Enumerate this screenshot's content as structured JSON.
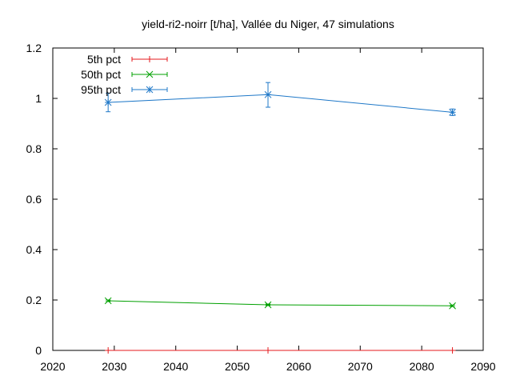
{
  "chart_data": {
    "type": "line",
    "title": "yield-ri2-noirr [t/ha], Vallée du Niger, 47 simulations",
    "xlabel": "",
    "ylabel": "",
    "xlim": [
      2020,
      2090
    ],
    "ylim": [
      0,
      1.2
    ],
    "xticks": [
      2020,
      2030,
      2040,
      2050,
      2060,
      2070,
      2080,
      2090
    ],
    "yticks": [
      0,
      0.2,
      0.4,
      0.6,
      0.8,
      1,
      1.2
    ],
    "x": [
      2029,
      2055,
      2085
    ],
    "grid": false,
    "legend_position": "top-left",
    "series": [
      {
        "name": "5th pct",
        "color": "#e41a1c",
        "marker": "plus",
        "values": [
          0,
          0,
          0
        ],
        "err_low": [
          0,
          0,
          0
        ],
        "err_high": [
          0,
          0,
          0
        ]
      },
      {
        "name": "50th pct",
        "color": "#00a000",
        "marker": "cross",
        "values": [
          0.197,
          0.181,
          0.177
        ],
        "err_low": [
          0.194,
          0.178,
          0.174
        ],
        "err_high": [
          0.2,
          0.184,
          0.18
        ]
      },
      {
        "name": "95th pct",
        "color": "#1f78c8",
        "marker": "star",
        "values": [
          0.984,
          1.015,
          0.945
        ],
        "err_low": [
          0.947,
          0.965,
          0.932
        ],
        "err_high": [
          1.021,
          1.063,
          0.958
        ]
      }
    ]
  }
}
